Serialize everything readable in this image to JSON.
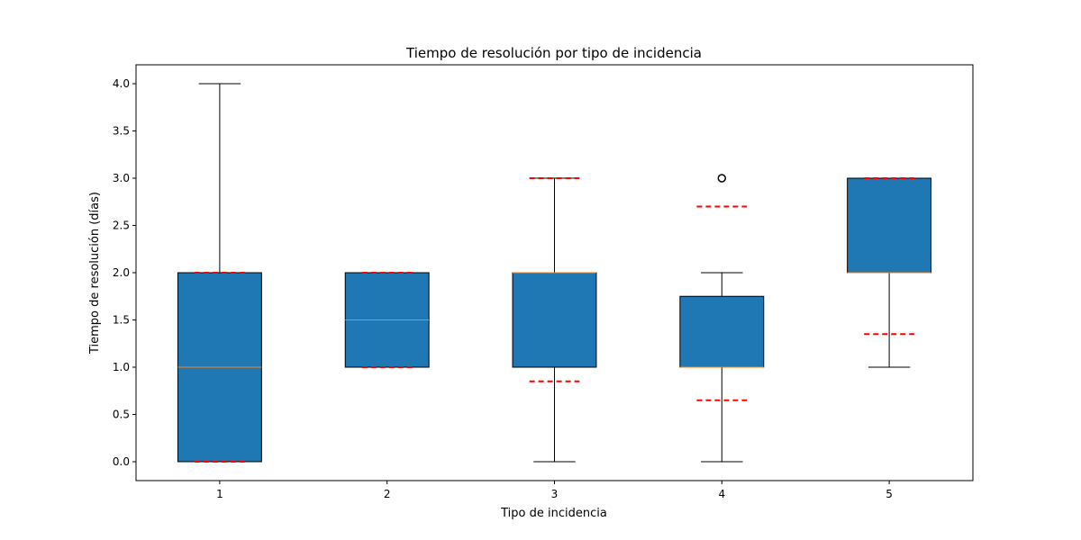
{
  "chart_data": {
    "type": "box",
    "title": "Tiempo de resolución por tipo de incidencia",
    "xlabel": "Tipo de incidencia",
    "ylabel": "Tiempo de resolución (días)",
    "ylim": [
      -0.2,
      4.2
    ],
    "yticks": [
      "0.0",
      "0.5",
      "1.0",
      "1.5",
      "2.0",
      "2.5",
      "3.0",
      "3.5",
      "4.0"
    ],
    "categories": [
      "1",
      "2",
      "3",
      "4",
      "5"
    ],
    "grid": false,
    "legend": "none",
    "colors": {
      "box_fill": "#1f77b4",
      "median": "#ff7f0e",
      "reference_line": "#ff0000",
      "whisker": "#000000"
    },
    "boxes": [
      {
        "category": "1",
        "whisker_low": 0.0,
        "q1": 0.0,
        "median": 1.0,
        "q3": 2.0,
        "whisker_high": 4.0,
        "outliers": [],
        "reference_low": 0.0,
        "reference_high": 2.0
      },
      {
        "category": "2",
        "whisker_low": 1.0,
        "q1": 1.0,
        "median": 1.5,
        "q3": 2.0,
        "whisker_high": 2.0,
        "outliers": [],
        "reference_low": 1.0,
        "reference_high": 2.0
      },
      {
        "category": "3",
        "whisker_low": 0.0,
        "q1": 1.0,
        "median": 2.0,
        "q3": 2.0,
        "whisker_high": 3.0,
        "outliers": [],
        "reference_low": 0.85,
        "reference_high": 3.0
      },
      {
        "category": "4",
        "whisker_low": 0.0,
        "q1": 1.0,
        "median": 1.0,
        "q3": 1.75,
        "whisker_high": 2.0,
        "outliers": [
          3.0
        ],
        "reference_low": 0.65,
        "reference_high": 2.7
      },
      {
        "category": "5",
        "whisker_low": 1.0,
        "q1": 2.0,
        "median": 2.0,
        "q3": 3.0,
        "whisker_high": 3.0,
        "outliers": [],
        "reference_low": 1.35,
        "reference_high": 3.0
      }
    ]
  }
}
